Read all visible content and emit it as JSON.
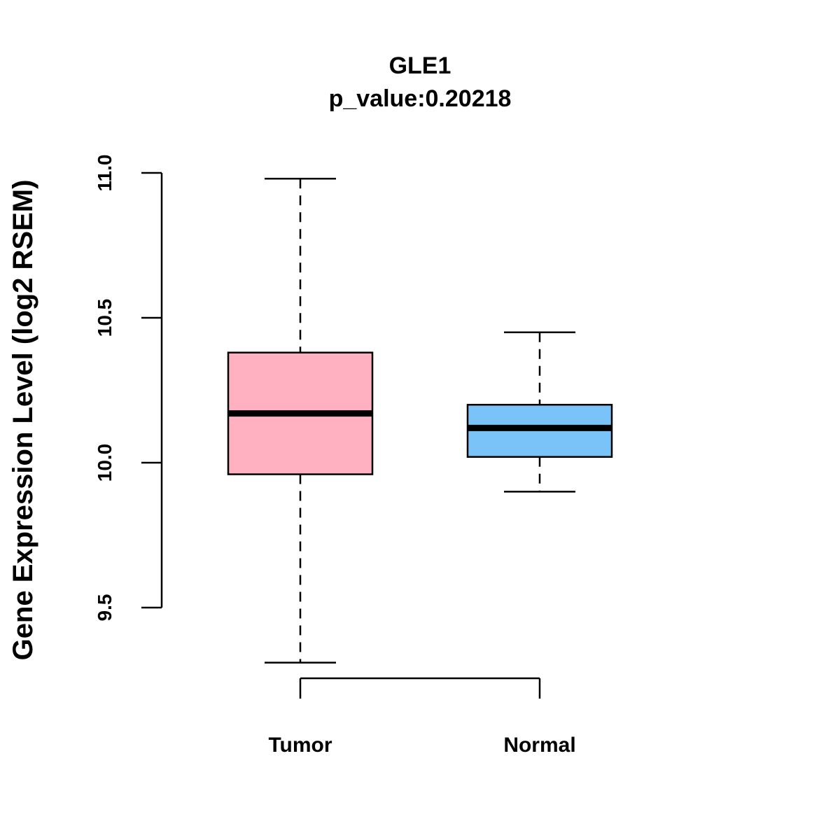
{
  "chart_data": {
    "type": "boxplot",
    "title": "GLE1",
    "subtitle": "p_value:0.20218",
    "xlabel": "",
    "ylabel": "Gene Expression Level (log2 RSEM)",
    "ylim": [
      9.5,
      11.0
    ],
    "yticks": [
      9.5,
      10.0,
      10.5,
      11.0
    ],
    "ytick_labels": [
      "9.5",
      "10.0",
      "10.5",
      "11.0"
    ],
    "categories": [
      "Tumor",
      "Normal"
    ],
    "boxes": [
      {
        "name": "Tumor",
        "whisker_low": 9.31,
        "q1": 9.96,
        "median": 10.17,
        "q3": 10.38,
        "whisker_high": 10.98,
        "color": "#FFB1C1"
      },
      {
        "name": "Normal",
        "whisker_low": 9.9,
        "q1": 10.02,
        "median": 10.12,
        "q3": 10.2,
        "whisker_high": 10.45,
        "color": "#79C3F8"
      }
    ]
  }
}
